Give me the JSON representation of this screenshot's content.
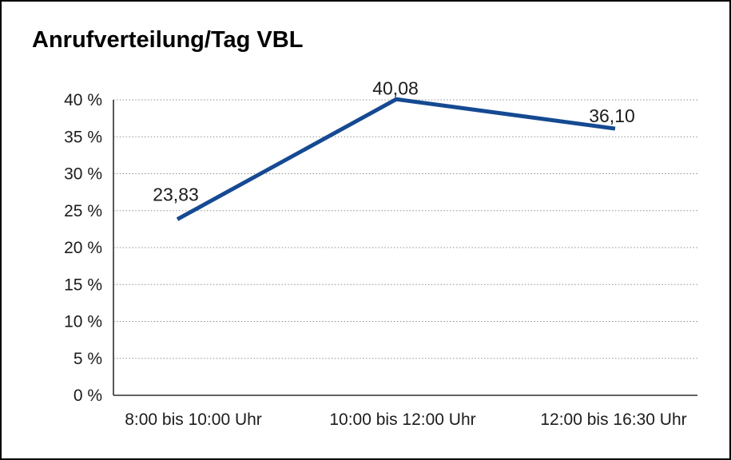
{
  "window": {
    "background_color": "#ffffff",
    "border_color": "#000000"
  },
  "chart_data": {
    "type": "line",
    "title": "Anrufverteilung/Tag VBL",
    "categories": [
      "8:00 bis 10:00 Uhr",
      "10:00 bis 12:00 Uhr",
      "12:00 bis 16:30 Uhr"
    ],
    "values": [
      23.83,
      40.08,
      36.1
    ],
    "value_labels": [
      "23,83",
      "40,08",
      "36,10"
    ],
    "xlabel": "",
    "ylabel": "",
    "ylim": [
      0,
      40
    ],
    "ytick_values": [
      0,
      5,
      10,
      15,
      20,
      25,
      30,
      35,
      40
    ],
    "ytick_labels": [
      "0 %",
      "5 %",
      "10 %",
      "15 %",
      "20 %",
      "25 %",
      "30 %",
      "35 %",
      "40 %"
    ],
    "grid": "horizontal-dotted",
    "legend": "none",
    "line_color": "#154a92",
    "axis_color": "#2f2f2f",
    "gridline_color": "#8f8f8f",
    "text_color": "#1c1c1c"
  }
}
